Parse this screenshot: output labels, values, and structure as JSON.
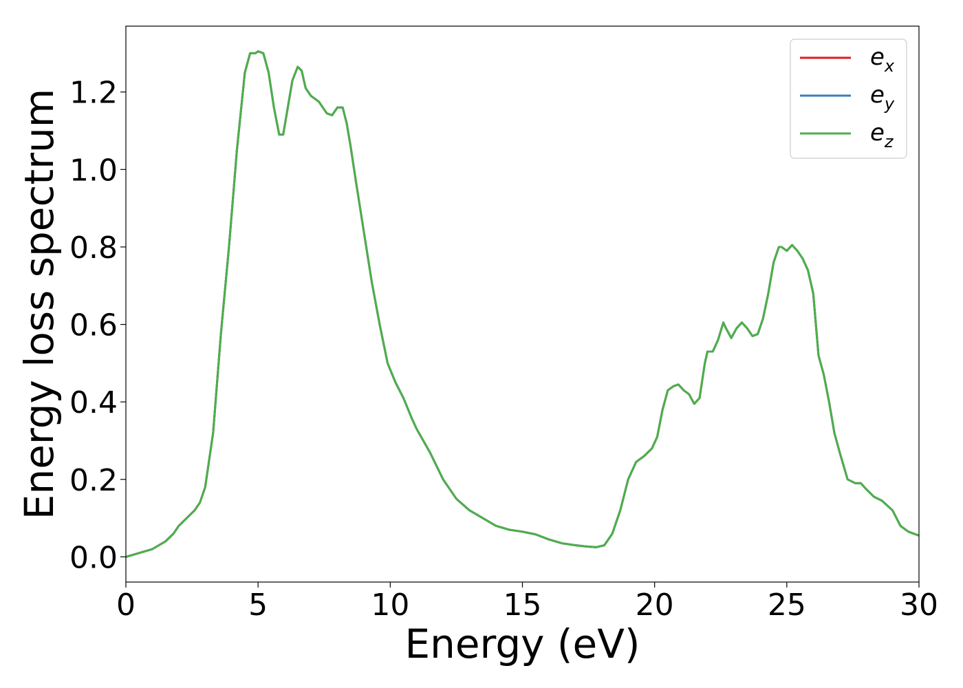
{
  "chart_data": {
    "type": "line",
    "title": "",
    "xlabel": "Energy (eV)",
    "ylabel": "Energy loss spectrum",
    "xlim": [
      0,
      30
    ],
    "ylim": [
      -0.065,
      1.37
    ],
    "x_ticks": [
      0,
      5,
      10,
      15,
      20,
      25,
      30
    ],
    "y_ticks": [
      0.0,
      0.2,
      0.4,
      0.6,
      0.8,
      1.0,
      1.2
    ],
    "grid": false,
    "legend_position": "upper right",
    "x": [
      0,
      0.5,
      1,
      1.5,
      1.8,
      2.0,
      2.3,
      2.6,
      2.8,
      3.0,
      3.3,
      3.6,
      3.9,
      4.2,
      4.5,
      4.7,
      4.9,
      5.0,
      5.2,
      5.4,
      5.6,
      5.8,
      5.95,
      6.1,
      6.3,
      6.5,
      6.65,
      6.8,
      7.0,
      7.3,
      7.6,
      7.8,
      8.0,
      8.2,
      8.35,
      8.5,
      8.7,
      9.0,
      9.3,
      9.6,
      9.9,
      10.2,
      10.5,
      10.8,
      11.0,
      11.5,
      12.0,
      12.5,
      13.0,
      13.5,
      14.0,
      14.5,
      15.0,
      15.5,
      16.0,
      16.5,
      17.0,
      17.4,
      17.8,
      18.1,
      18.4,
      18.7,
      19.0,
      19.3,
      19.6,
      19.9,
      20.1,
      20.3,
      20.5,
      20.7,
      20.9,
      21.1,
      21.3,
      21.5,
      21.7,
      21.9,
      22.0,
      22.2,
      22.4,
      22.6,
      22.7,
      22.9,
      23.1,
      23.3,
      23.5,
      23.7,
      23.9,
      24.1,
      24.3,
      24.5,
      24.7,
      24.8,
      25.0,
      25.2,
      25.4,
      25.6,
      25.8,
      26.0,
      26.2,
      26.4,
      26.6,
      26.8,
      27.0,
      27.3,
      27.6,
      27.8,
      28.0,
      28.3,
      28.6,
      29.0,
      29.3,
      29.6,
      30.0
    ],
    "series": [
      {
        "name": "e_x",
        "color": "#e41a1c",
        "values": [
          0.0,
          0.01,
          0.02,
          0.04,
          0.06,
          0.08,
          0.1,
          0.12,
          0.14,
          0.18,
          0.32,
          0.58,
          0.8,
          1.05,
          1.25,
          1.3,
          1.3,
          1.305,
          1.3,
          1.25,
          1.16,
          1.09,
          1.09,
          1.15,
          1.23,
          1.265,
          1.255,
          1.21,
          1.19,
          1.175,
          1.145,
          1.14,
          1.16,
          1.16,
          1.12,
          1.06,
          0.97,
          0.84,
          0.71,
          0.6,
          0.5,
          0.45,
          0.41,
          0.36,
          0.33,
          0.27,
          0.2,
          0.15,
          0.12,
          0.1,
          0.08,
          0.07,
          0.065,
          0.058,
          0.045,
          0.035,
          0.03,
          0.027,
          0.025,
          0.03,
          0.06,
          0.12,
          0.2,
          0.245,
          0.26,
          0.28,
          0.31,
          0.38,
          0.43,
          0.44,
          0.445,
          0.43,
          0.42,
          0.395,
          0.41,
          0.5,
          0.53,
          0.53,
          0.56,
          0.605,
          0.59,
          0.565,
          0.59,
          0.605,
          0.59,
          0.57,
          0.575,
          0.615,
          0.68,
          0.76,
          0.8,
          0.8,
          0.79,
          0.805,
          0.79,
          0.77,
          0.74,
          0.68,
          0.52,
          0.47,
          0.4,
          0.32,
          0.27,
          0.2,
          0.19,
          0.19,
          0.175,
          0.155,
          0.145,
          0.12,
          0.08,
          0.065,
          0.055
        ]
      },
      {
        "name": "e_y",
        "color": "#377eb8",
        "values": [
          0.0,
          0.01,
          0.02,
          0.04,
          0.06,
          0.08,
          0.1,
          0.12,
          0.14,
          0.18,
          0.32,
          0.58,
          0.8,
          1.05,
          1.25,
          1.3,
          1.3,
          1.305,
          1.3,
          1.25,
          1.16,
          1.09,
          1.09,
          1.15,
          1.23,
          1.265,
          1.255,
          1.21,
          1.19,
          1.175,
          1.145,
          1.14,
          1.16,
          1.16,
          1.12,
          1.06,
          0.97,
          0.84,
          0.71,
          0.6,
          0.5,
          0.45,
          0.41,
          0.36,
          0.33,
          0.27,
          0.2,
          0.15,
          0.12,
          0.1,
          0.08,
          0.07,
          0.065,
          0.058,
          0.045,
          0.035,
          0.03,
          0.027,
          0.025,
          0.03,
          0.06,
          0.12,
          0.2,
          0.245,
          0.26,
          0.28,
          0.31,
          0.38,
          0.43,
          0.44,
          0.445,
          0.43,
          0.42,
          0.395,
          0.41,
          0.5,
          0.53,
          0.53,
          0.56,
          0.605,
          0.59,
          0.565,
          0.59,
          0.605,
          0.59,
          0.57,
          0.575,
          0.615,
          0.68,
          0.76,
          0.8,
          0.8,
          0.79,
          0.805,
          0.79,
          0.77,
          0.74,
          0.68,
          0.52,
          0.47,
          0.4,
          0.32,
          0.27,
          0.2,
          0.19,
          0.19,
          0.175,
          0.155,
          0.145,
          0.12,
          0.08,
          0.065,
          0.055
        ]
      },
      {
        "name": "e_z",
        "color": "#4daf4a",
        "values": [
          0.0,
          0.01,
          0.02,
          0.04,
          0.06,
          0.08,
          0.1,
          0.12,
          0.14,
          0.18,
          0.32,
          0.58,
          0.8,
          1.05,
          1.25,
          1.3,
          1.3,
          1.305,
          1.3,
          1.25,
          1.16,
          1.09,
          1.09,
          1.15,
          1.23,
          1.265,
          1.255,
          1.21,
          1.19,
          1.175,
          1.145,
          1.14,
          1.16,
          1.16,
          1.12,
          1.06,
          0.97,
          0.84,
          0.71,
          0.6,
          0.5,
          0.45,
          0.41,
          0.36,
          0.33,
          0.27,
          0.2,
          0.15,
          0.12,
          0.1,
          0.08,
          0.07,
          0.065,
          0.058,
          0.045,
          0.035,
          0.03,
          0.027,
          0.025,
          0.03,
          0.06,
          0.12,
          0.2,
          0.245,
          0.26,
          0.28,
          0.31,
          0.38,
          0.43,
          0.44,
          0.445,
          0.43,
          0.42,
          0.395,
          0.41,
          0.5,
          0.53,
          0.53,
          0.56,
          0.605,
          0.59,
          0.565,
          0.59,
          0.605,
          0.59,
          0.57,
          0.575,
          0.615,
          0.68,
          0.76,
          0.8,
          0.8,
          0.79,
          0.805,
          0.79,
          0.77,
          0.74,
          0.68,
          0.52,
          0.47,
          0.4,
          0.32,
          0.27,
          0.2,
          0.19,
          0.19,
          0.175,
          0.155,
          0.145,
          0.12,
          0.08,
          0.065,
          0.055
        ]
      }
    ],
    "legend": [
      {
        "base": "e",
        "sub": "x",
        "color": "#e41a1c"
      },
      {
        "base": "e",
        "sub": "y",
        "color": "#377eb8"
      },
      {
        "base": "e",
        "sub": "z",
        "color": "#4daf4a"
      }
    ]
  }
}
